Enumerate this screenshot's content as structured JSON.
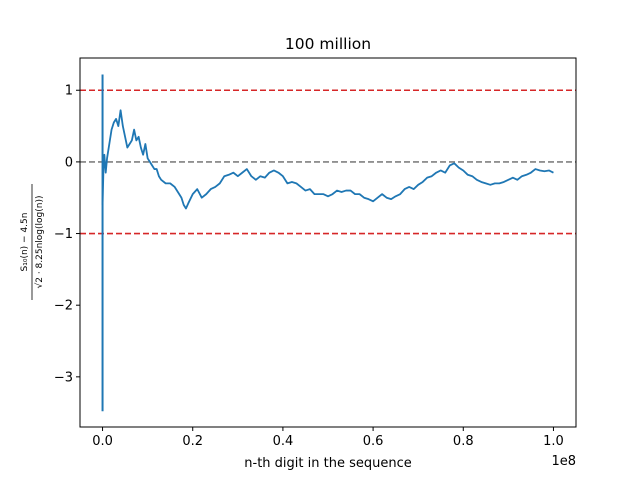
{
  "chart_data": {
    "type": "line",
    "title": "100 million",
    "xlabel": "n-th digit in the sequence",
    "ylabel_numerator": "S₁₀(n) − 4.5n",
    "ylabel_denominator": "√2 · 8.25nlog(log(n))",
    "x_offset_text": "1e8",
    "xlim": [
      -5000000,
      105000000
    ],
    "ylim": [
      -3.7,
      1.45
    ],
    "xticks": [
      0,
      20000000,
      40000000,
      60000000,
      80000000,
      100000000
    ],
    "xtick_labels": [
      "0.0",
      "0.2",
      "0.4",
      "0.6",
      "0.8",
      "1.0"
    ],
    "yticks": [
      1,
      0,
      -1,
      -2,
      -3
    ],
    "ytick_labels": [
      "1",
      "0",
      "−1",
      "−2",
      "−3"
    ],
    "reference_lines": [
      {
        "y": 1,
        "color": "#d62728",
        "style": "dashed"
      },
      {
        "y": 0,
        "color": "#808080",
        "style": "dashed"
      },
      {
        "y": -1,
        "color": "#d62728",
        "style": "dashed"
      }
    ],
    "series": [
      {
        "color": "#1f77b4",
        "spike": {
          "x": 0,
          "y_min": -3.48,
          "y_max": 1.22
        },
        "x": [
          0,
          200000,
          400000,
          700000,
          1000000,
          1500000,
          2000000,
          2500000,
          3000000,
          3500000,
          4000000,
          4500000,
          5000000,
          5500000,
          6000000,
          6500000,
          7000000,
          7500000,
          8000000,
          8500000,
          9000000,
          9500000,
          10000000,
          10500000,
          11000000,
          11500000,
          12000000,
          12500000,
          13000000,
          14000000,
          15000000,
          16000000,
          17000000,
          17500000,
          18000000,
          18500000,
          19000000,
          20000000,
          21000000,
          22000000,
          23000000,
          24000000,
          25000000,
          26000000,
          27000000,
          28000000,
          29000000,
          30000000,
          31000000,
          32000000,
          33000000,
          34000000,
          35000000,
          36000000,
          37000000,
          38000000,
          39000000,
          40000000,
          41000000,
          42000000,
          43000000,
          44000000,
          45000000,
          46000000,
          47000000,
          48000000,
          49000000,
          50000000,
          51000000,
          52000000,
          53000000,
          54000000,
          55000000,
          56000000,
          57000000,
          58000000,
          59000000,
          60000000,
          61000000,
          62000000,
          63000000,
          64000000,
          65000000,
          66000000,
          67000000,
          68000000,
          69000000,
          70000000,
          71000000,
          72000000,
          73000000,
          74000000,
          75000000,
          76000000,
          77000000,
          78000000,
          79000000,
          80000000,
          81000000,
          82000000,
          83000000,
          84000000,
          85000000,
          86000000,
          87000000,
          88000000,
          89000000,
          90000000,
          91000000,
          92000000,
          93000000,
          94000000,
          95000000,
          96000000,
          97000000,
          98000000,
          99000000,
          100000000
        ],
        "y": [
          -0.6,
          -0.1,
          0.1,
          -0.15,
          0.05,
          0.25,
          0.45,
          0.55,
          0.6,
          0.5,
          0.72,
          0.5,
          0.35,
          0.2,
          0.25,
          0.3,
          0.45,
          0.3,
          0.35,
          0.2,
          0.1,
          0.25,
          0.05,
          0.0,
          -0.05,
          -0.1,
          -0.1,
          -0.2,
          -0.25,
          -0.3,
          -0.3,
          -0.35,
          -0.45,
          -0.5,
          -0.6,
          -0.65,
          -0.58,
          -0.45,
          -0.38,
          -0.5,
          -0.45,
          -0.38,
          -0.35,
          -0.3,
          -0.2,
          -0.18,
          -0.15,
          -0.2,
          -0.15,
          -0.1,
          -0.2,
          -0.25,
          -0.2,
          -0.22,
          -0.15,
          -0.12,
          -0.15,
          -0.2,
          -0.3,
          -0.28,
          -0.3,
          -0.35,
          -0.4,
          -0.38,
          -0.45,
          -0.45,
          -0.45,
          -0.48,
          -0.45,
          -0.4,
          -0.42,
          -0.4,
          -0.4,
          -0.45,
          -0.45,
          -0.5,
          -0.52,
          -0.55,
          -0.5,
          -0.45,
          -0.5,
          -0.52,
          -0.48,
          -0.45,
          -0.38,
          -0.35,
          -0.38,
          -0.32,
          -0.28,
          -0.22,
          -0.2,
          -0.15,
          -0.12,
          -0.15,
          -0.05,
          -0.02,
          -0.08,
          -0.12,
          -0.18,
          -0.2,
          -0.25,
          -0.28,
          -0.3,
          -0.32,
          -0.3,
          -0.3,
          -0.28,
          -0.25,
          -0.22,
          -0.25,
          -0.2,
          -0.18,
          -0.15,
          -0.1,
          -0.12,
          -0.13,
          -0.12,
          -0.15
        ]
      }
    ]
  }
}
